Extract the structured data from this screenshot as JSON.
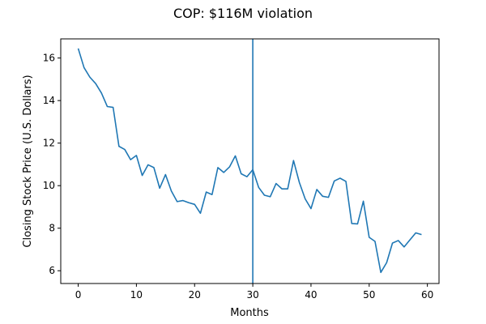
{
  "chart_data": {
    "type": "line",
    "title": "COP: $116M violation",
    "xlabel": "Months",
    "ylabel": "Closing Stock Price (U.S. Dollars)",
    "xlim": [
      -3,
      62
    ],
    "ylim": [
      5.4,
      16.9
    ],
    "xticks": [
      0,
      10,
      20,
      30,
      40,
      50,
      60
    ],
    "yticks": [
      6,
      8,
      10,
      12,
      14,
      16
    ],
    "grid": false,
    "line_color": "#1f77b4",
    "vline": {
      "x": 30,
      "color": "#1f77b4"
    },
    "series": [
      {
        "x": [
          0,
          1,
          2,
          3,
          4,
          5,
          6,
          7,
          8,
          9,
          10,
          11,
          12,
          13,
          14,
          15,
          16,
          17,
          18,
          19,
          20,
          21,
          22,
          23,
          24,
          25,
          26,
          27,
          28,
          29,
          30,
          31,
          32,
          33,
          34,
          35,
          36,
          37,
          38,
          39,
          40,
          41,
          42,
          43,
          44,
          45,
          46,
          47,
          48,
          49,
          50,
          51,
          52,
          53,
          54,
          55,
          56,
          57,
          58,
          59
        ],
        "values": [
          16.45,
          15.55,
          15.1,
          14.8,
          14.35,
          13.72,
          13.68,
          11.85,
          11.7,
          11.22,
          11.42,
          10.48,
          10.98,
          10.85,
          9.88,
          10.52,
          9.75,
          9.25,
          9.3,
          9.2,
          9.12,
          8.7,
          9.7,
          9.58,
          10.85,
          10.62,
          10.88,
          11.4,
          10.56,
          10.42,
          10.75,
          9.92,
          9.55,
          9.48,
          10.1,
          9.85,
          9.85,
          11.18,
          10.15,
          9.38,
          8.92,
          9.82,
          9.5,
          9.45,
          10.22,
          10.35,
          10.2,
          8.22,
          8.2,
          9.27,
          7.57,
          7.38,
          5.92,
          6.38,
          7.3,
          7.42,
          7.12,
          7.45,
          7.78,
          7.7
        ]
      }
    ]
  }
}
